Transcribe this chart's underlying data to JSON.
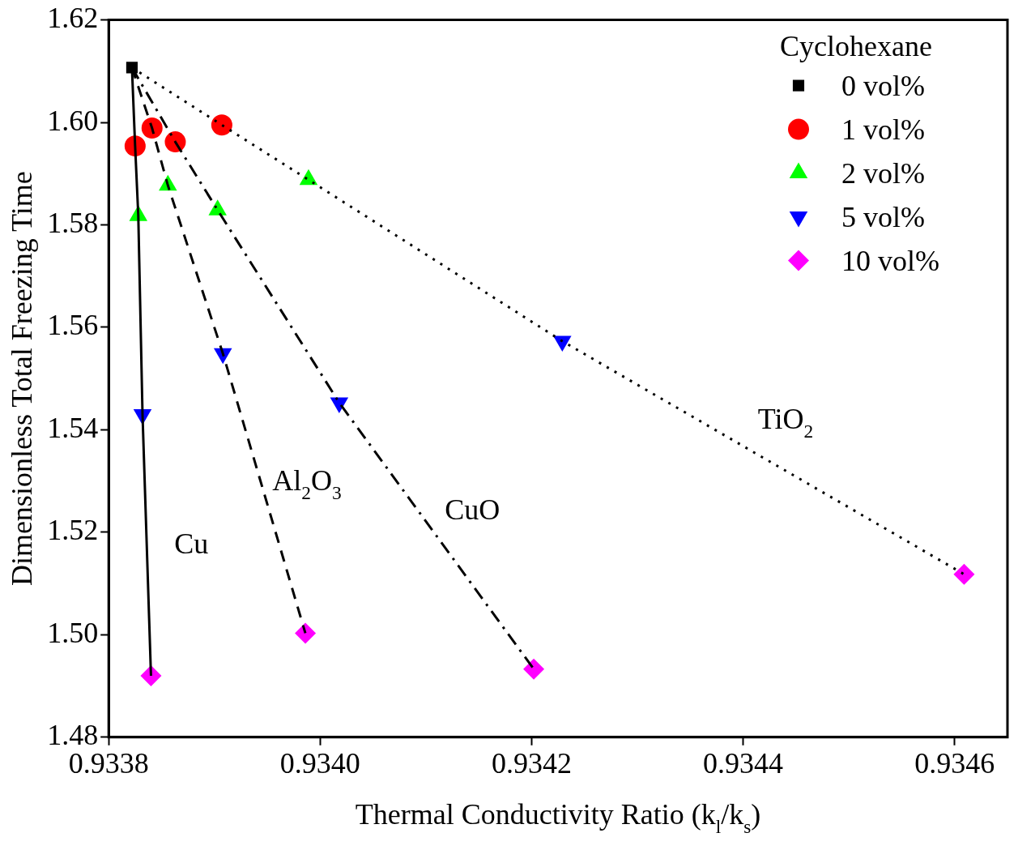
{
  "chart_data": {
    "type": "scatter",
    "xlabel": "Thermal Conductivity Ratio (k$_{l}$/k$_{s}$)",
    "ylabel": "Dimensionless Total Freezing Time",
    "legend_title": "Cyclohexane",
    "legend": "top right",
    "grid": false,
    "xlim": [
      0.9338,
      0.93465
    ],
    "xticks": [
      0.9338,
      {
        "value": 0.934,
        "label": "0.9340"
      },
      0.9342,
      0.9344,
      0.9346
    ],
    "ylim": [
      1.48,
      1.62
    ],
    "yticks": [
      1.48,
      {
        "value": 1.5,
        "label": "1.50"
      },
      1.52,
      1.54,
      1.56,
      1.58,
      {
        "value": 1.6,
        "label": "1.60"
      },
      1.62
    ],
    "series": [
      {
        "type": "line",
        "name": "Cu",
        "color": "#000000",
        "line_style": "solid",
        "marker": "none",
        "x": [
          0.933822,
          0.933825,
          0.933828,
          0.933832,
          0.93384
        ],
        "values": [
          1.6107,
          1.5954,
          1.5818,
          1.543,
          1.492
        ]
      },
      {
        "type": "line",
        "name": "Al$_{2}$O$_{3}$",
        "color": "#000000",
        "line_style": "dashed",
        "marker": "none",
        "x": [
          0.933822,
          0.933841,
          0.933856,
          0.933908,
          0.933986
        ],
        "values": [
          1.6107,
          1.5989,
          1.5877,
          1.5549,
          1.5003
        ]
      },
      {
        "type": "line",
        "name": "CuO",
        "color": "#000000",
        "line_style": "dashdot",
        "marker": "none",
        "x": [
          0.933822,
          0.933863,
          0.933903,
          0.934018,
          0.934202
        ],
        "values": [
          1.6107,
          1.5962,
          1.5829,
          1.5453,
          1.4933
        ]
      },
      {
        "type": "line",
        "name": "TiO$_{2}$",
        "color": "#000000",
        "line_style": "dotted",
        "marker": "none",
        "x": [
          0.933822,
          0.933907,
          0.933989,
          0.934229,
          0.934609
        ],
        "values": [
          1.6107,
          1.5995,
          1.5888,
          1.5573,
          1.5118
        ]
      },
      {
        "name": "0 vol%",
        "color": "#000000",
        "marker": "square",
        "x": [
          0.933822
        ],
        "values": [
          1.6107
        ]
      },
      {
        "name": "1 vol%",
        "color": "#ff0000",
        "marker": "circle",
        "x": [
          0.933825,
          0.933841,
          0.933863,
          0.933907
        ],
        "values": [
          1.5954,
          1.5989,
          1.5962,
          1.5995
        ]
      },
      {
        "name": "2 vol%",
        "color": "#00ff00",
        "marker": "triangle",
        "x": [
          0.933828,
          0.933856,
          0.933903,
          0.933989
        ],
        "values": [
          1.5818,
          1.5877,
          1.5829,
          1.5888
        ]
      },
      {
        "name": "5 vol%",
        "color": "#0000ff",
        "marker": "triangle_down",
        "x": [
          0.933832,
          0.933908,
          0.934018,
          0.934229
        ],
        "values": [
          1.543,
          1.5549,
          1.5453,
          1.5573
        ]
      },
      {
        "name": "10 vol%",
        "color": "#ff00ff",
        "marker": "diamond",
        "x": [
          0.93384,
          0.933986,
          0.934202,
          0.934609
        ],
        "values": [
          1.492,
          1.5003,
          1.4933,
          1.5118
        ]
      }
    ]
  }
}
